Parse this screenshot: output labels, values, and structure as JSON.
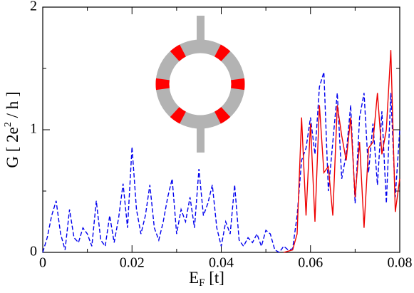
{
  "chart_data": {
    "type": "line",
    "xlabel": {
      "main": "E",
      "sub": "F",
      "rest": " [t]"
    },
    "ylabel": {
      "main": "G [ 2e",
      "sup": "2",
      "rest": " / h ]"
    },
    "x": [
      0,
      0.001,
      0.002,
      0.003,
      0.004,
      0.005,
      0.006,
      0.007,
      0.008,
      0.009,
      0.01,
      0.011,
      0.012,
      0.013,
      0.014,
      0.015,
      0.016,
      0.017,
      0.018,
      0.019,
      0.02,
      0.021,
      0.022,
      0.023,
      0.024,
      0.025,
      0.026,
      0.027,
      0.028,
      0.029,
      0.03,
      0.031,
      0.032,
      0.033,
      0.034,
      0.035,
      0.036,
      0.037,
      0.038,
      0.039,
      0.04,
      0.041,
      0.042,
      0.043,
      0.044,
      0.045,
      0.046,
      0.047,
      0.048,
      0.049,
      0.05,
      0.051,
      0.052,
      0.053,
      0.054,
      0.055,
      0.056,
      0.057,
      0.058,
      0.059,
      0.06,
      0.061,
      0.062,
      0.063,
      0.064,
      0.065,
      0.066,
      0.067,
      0.068,
      0.069,
      0.07,
      0.071,
      0.072,
      0.073,
      0.074,
      0.075,
      0.076,
      0.077,
      0.078,
      0.079,
      0.08
    ],
    "series": [
      {
        "color": "#0000ee",
        "dash": "6,3",
        "values": [
          0.0,
          0.12,
          0.3,
          0.42,
          0.15,
          0.02,
          0.35,
          0.12,
          0.08,
          0.2,
          0.15,
          0.05,
          0.42,
          0.1,
          0.05,
          0.3,
          0.08,
          0.28,
          0.56,
          0.2,
          0.86,
          0.35,
          0.15,
          0.3,
          0.55,
          0.2,
          0.1,
          0.25,
          0.45,
          0.6,
          0.15,
          0.35,
          0.25,
          0.45,
          0.2,
          0.68,
          0.3,
          0.4,
          0.55,
          0.2,
          0.05,
          0.25,
          0.15,
          0.55,
          0.1,
          0.05,
          0.12,
          0.08,
          0.15,
          0.05,
          0.18,
          0.15,
          0.02,
          0.0,
          0.05,
          0.02,
          0.03,
          0.3,
          0.75,
          0.85,
          1.1,
          0.8,
          1.35,
          1.47,
          0.5,
          0.9,
          1.3,
          0.6,
          0.8,
          1.2,
          0.4,
          1.1,
          1.3,
          0.65,
          1.05,
          0.55,
          1.15,
          0.4,
          1.3,
          0.45,
          1.0
        ]
      },
      {
        "color": "#ee0000",
        "dash": "none",
        "values": [
          null,
          null,
          null,
          null,
          null,
          null,
          null,
          null,
          null,
          null,
          null,
          null,
          null,
          null,
          null,
          null,
          null,
          null,
          null,
          null,
          null,
          null,
          null,
          null,
          null,
          null,
          null,
          null,
          null,
          null,
          null,
          null,
          null,
          null,
          null,
          null,
          null,
          null,
          null,
          null,
          null,
          null,
          null,
          null,
          null,
          null,
          null,
          null,
          null,
          null,
          null,
          null,
          null,
          null,
          0.0,
          0.01,
          0.02,
          0.15,
          1.1,
          0.3,
          1.05,
          0.25,
          1.2,
          0.65,
          0.7,
          0.3,
          1.2,
          0.95,
          0.75,
          1.1,
          0.45,
          0.9,
          0.2,
          0.85,
          0.9,
          1.3,
          0.8,
          1.0,
          1.65,
          0.33,
          0.6
        ]
      }
    ],
    "xlim": [
      0,
      0.08
    ],
    "xticks": [
      0,
      0.02,
      0.04,
      0.06,
      0.08
    ],
    "xminorticks": [
      0.01,
      0.03,
      0.05,
      0.07
    ],
    "ylim": [
      0,
      2
    ],
    "yticks": [
      0,
      1,
      2
    ],
    "yminorticks": [
      0.5,
      1.5
    ]
  }
}
